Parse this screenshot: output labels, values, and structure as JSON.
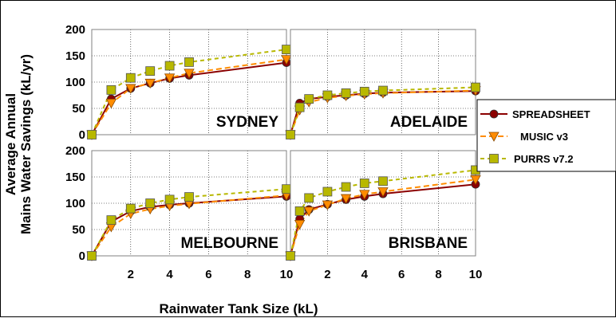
{
  "chart_data": {
    "type": "line",
    "ylabel_line1": "Average Annual",
    "ylabel_line2": "Mains Water Savings (kL/yr)",
    "xlabel": "Rainwater Tank Size (kL)",
    "ylim": [
      0,
      200
    ],
    "yticks": [
      0,
      50,
      100,
      150,
      200
    ],
    "xlim": [
      0,
      10
    ],
    "xticks": [
      2,
      4,
      6,
      8,
      10
    ],
    "grid": true,
    "legend_position": "right",
    "styles": {
      "SPREADSHEET": {
        "color": "#8b0000",
        "marker": "circle",
        "dash": ""
      },
      "MUSIC v3": {
        "color": "#ff8c00",
        "marker": "triangle-down",
        "dash": "7,4"
      },
      "PURRS v7.2": {
        "color": "#b8b800",
        "marker": "square",
        "dash": "5,4"
      }
    },
    "panels": [
      {
        "name": "SYDNEY",
        "series": [
          {
            "name": "SPREADSHEET",
            "x": [
              0,
              1,
              2,
              3,
              4,
              5,
              10
            ],
            "y": [
              0,
              68,
              88,
              98,
              107,
              113,
              137
            ]
          },
          {
            "name": "MUSIC v3",
            "x": [
              0,
              1,
              2,
              3,
              4,
              5,
              10
            ],
            "y": [
              0,
              60,
              88,
              98,
              108,
              117,
              143
            ]
          },
          {
            "name": "PURRS v7.2",
            "x": [
              0,
              1,
              2,
              3,
              4,
              5,
              10
            ],
            "y": [
              0,
              85,
              108,
              121,
              131,
              138,
              162
            ]
          }
        ]
      },
      {
        "name": "ADELAIDE",
        "series": [
          {
            "name": "SPREADSHEET",
            "x": [
              0,
              0.5,
              1,
              2,
              3,
              4,
              5,
              10
            ],
            "y": [
              0,
              60,
              68,
              72,
              75,
              78,
              80,
              83
            ]
          },
          {
            "name": "MUSIC v3",
            "x": [
              0,
              0.5,
              1,
              2,
              3,
              4,
              5,
              10
            ],
            "y": [
              0,
              47,
              62,
              70,
              74,
              77,
              79,
              84
            ]
          },
          {
            "name": "PURRS v7.2",
            "x": [
              0,
              0.5,
              1,
              2,
              3,
              4,
              5,
              10
            ],
            "y": [
              0,
              52,
              68,
              75,
              79,
              82,
              84,
              90
            ]
          }
        ]
      },
      {
        "name": "MELBOURNE",
        "series": [
          {
            "name": "SPREADSHEET",
            "x": [
              0,
              1,
              2,
              3,
              4,
              5,
              10
            ],
            "y": [
              0,
              65,
              85,
              93,
              97,
              100,
              113
            ]
          },
          {
            "name": "MUSIC v3",
            "x": [
              0,
              1,
              2,
              3,
              4,
              5,
              10
            ],
            "y": [
              0,
              55,
              80,
              89,
              95,
              99,
              115
            ]
          },
          {
            "name": "PURRS v7.2",
            "x": [
              0,
              1,
              2,
              3,
              4,
              5,
              10
            ],
            "y": [
              0,
              68,
              90,
              100,
              107,
              112,
              127
            ]
          }
        ]
      },
      {
        "name": "BRISBANE",
        "series": [
          {
            "name": "SPREADSHEET",
            "x": [
              0,
              0.5,
              1,
              2,
              3,
              4,
              5,
              10
            ],
            "y": [
              0,
              70,
              88,
              98,
              107,
              113,
              118,
              136
            ]
          },
          {
            "name": "MUSIC v3",
            "x": [
              0,
              0.5,
              1,
              2,
              3,
              4,
              5,
              10
            ],
            "y": [
              0,
              60,
              85,
              97,
              109,
              117,
              122,
              145
            ]
          },
          {
            "name": "PURRS v7.2",
            "x": [
              0,
              0.5,
              1,
              2,
              3,
              4,
              5,
              10
            ],
            "y": [
              0,
              85,
              110,
              122,
              131,
              138,
              142,
              163
            ]
          }
        ]
      }
    ]
  }
}
